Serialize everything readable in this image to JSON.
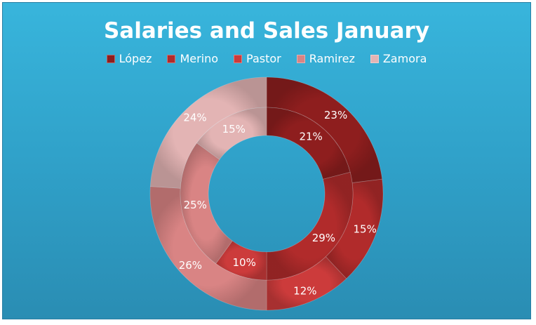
{
  "chart_data": {
    "type": "pie",
    "subtype": "nested-donut",
    "title": "Salaries and Sales January",
    "legend_position": "top",
    "categories": [
      "López",
      "Merino",
      "Pastor",
      "Ramirez",
      "Zamora"
    ],
    "colors": [
      "#8e1e1e",
      "#b12b2b",
      "#cc3b3b",
      "#d98484",
      "#e3b4b4"
    ],
    "series": [
      {
        "ring": "outer",
        "values": [
          23,
          15,
          12,
          26,
          24
        ],
        "labels": [
          "23%",
          "15%",
          "12%",
          "26%",
          "24%"
        ]
      },
      {
        "ring": "inner",
        "values": [
          21,
          29,
          10,
          25,
          15
        ],
        "labels": [
          "21%",
          "29%",
          "10%",
          "25%",
          "15%"
        ]
      }
    ]
  }
}
